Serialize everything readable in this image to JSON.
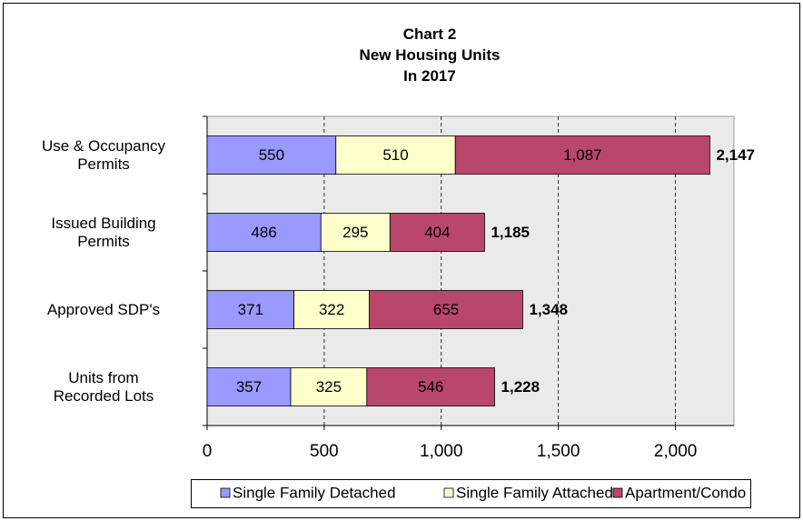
{
  "chart_data": {
    "type": "stacked_bar_horizontal",
    "title": "Chart 2\nNew Housing Units\nIn 2017",
    "categories": [
      "Use & Occupancy\nPermits",
      "Issued Building\nPermits",
      "Approved SDP's",
      "Units from\nRecorded Lots"
    ],
    "series": [
      {
        "name": "Single Family Detached",
        "color": "#9999ff",
        "values": [
          550,
          486,
          371,
          357
        ]
      },
      {
        "name": "Single Family Attached",
        "color": "#ffffcc",
        "values": [
          510,
          295,
          322,
          325
        ]
      },
      {
        "name": "Apartment/Condo",
        "color": "#b9476d",
        "values": [
          1087,
          404,
          655,
          546
        ],
        "value_labels": [
          "1,087",
          "404",
          "655",
          "546"
        ]
      }
    ],
    "totals": [
      2147,
      1185,
      1348,
      1228
    ],
    "total_labels": [
      "2,147",
      "1,185",
      "1,348",
      "1,228"
    ],
    "xlim": [
      0,
      2250
    ],
    "xticks": [
      0,
      500,
      {
        "value": 1000,
        "label": "1,000"
      },
      {
        "value": 1500,
        "label": "1,500"
      },
      {
        "value": 2000,
        "label": "2,000"
      }
    ],
    "grid": true,
    "legend": "bottom"
  }
}
